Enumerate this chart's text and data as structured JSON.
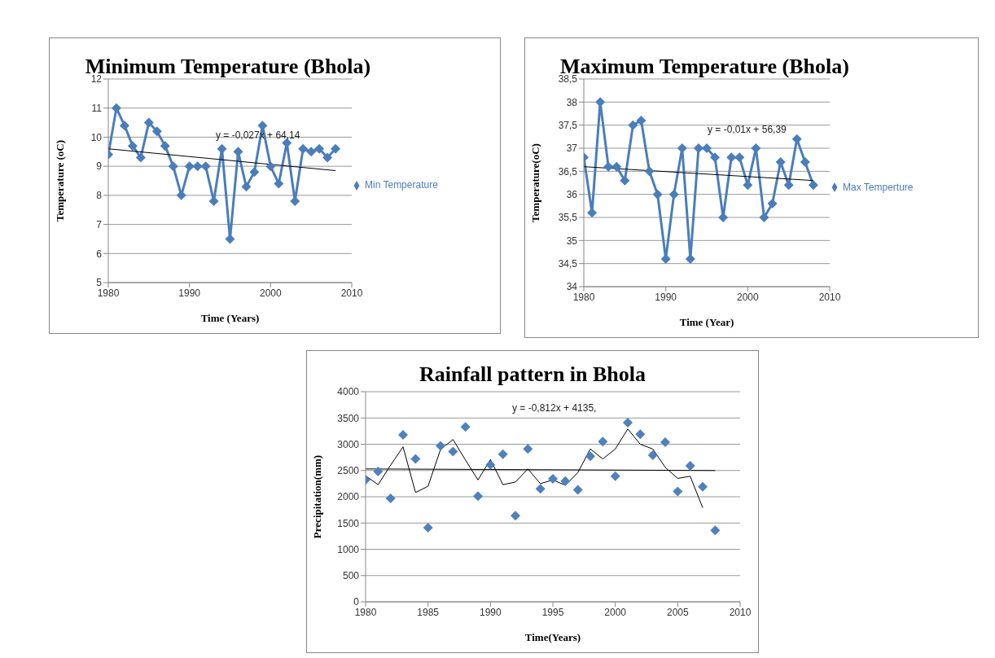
{
  "chart_data": [
    {
      "type": "line",
      "title": "Minimum Temperature (Bhola)",
      "xlabel": "Time (Years)",
      "ylabel": "Temperature (oC)",
      "xlim": [
        1980,
        2010
      ],
      "xticks": [
        1980,
        1990,
        2000,
        2010
      ],
      "ylim": [
        5,
        12
      ],
      "yticks": [
        5,
        6,
        7,
        8,
        9,
        10,
        11,
        12
      ],
      "grid": "y",
      "legend": "right",
      "marker": "diamond",
      "line_style": "solid",
      "series": [
        {
          "name": "Min Temperature",
          "color": "#4a7ebb",
          "x": [
            1980,
            1981,
            1982,
            1983,
            1984,
            1985,
            1986,
            1987,
            1988,
            1989,
            1990,
            1991,
            1992,
            1993,
            1994,
            1995,
            1996,
            1997,
            1998,
            1999,
            2000,
            2001,
            2002,
            2003,
            2004,
            2005,
            2006,
            2007,
            2008
          ],
          "values": [
            9.4,
            11,
            10.4,
            9.7,
            9.3,
            10.5,
            10.2,
            9.7,
            9,
            8,
            9,
            9,
            9,
            7.8,
            9.6,
            6.5,
            9.5,
            8.3,
            8.8,
            10.4,
            9,
            8.4,
            9.8,
            7.8,
            9.6,
            9.5,
            9.6,
            9.3,
            9.6
          ]
        },
        {
          "type": "line",
          "marker": "none",
          "color": "#000000",
          "x": [
            1980,
            2008
          ],
          "values": [
            9.6,
            8.85
          ]
        }
      ],
      "annotations": [
        "y = -0,027x + 64,14"
      ]
    },
    {
      "type": "line",
      "title": "Maximum Temperature (Bhola)",
      "xlabel": "Time (Year)",
      "ylabel": "Temperature(oC)",
      "xlim": [
        1980,
        2010
      ],
      "xticks": [
        1980,
        1990,
        2000,
        2010
      ],
      "ylim": [
        34,
        38.5
      ],
      "yticks": [
        {
          "value": 34,
          "label": "34"
        },
        {
          "value": 34.5,
          "label": "34,5"
        },
        {
          "value": 35,
          "label": "35"
        },
        {
          "value": 35.5,
          "label": "35,5"
        },
        {
          "value": 36,
          "label": "36"
        },
        {
          "value": 36.5,
          "label": "36,5"
        },
        {
          "value": 37,
          "label": "37"
        },
        {
          "value": 37.5,
          "label": "37,5"
        },
        {
          "value": 38,
          "label": "38"
        },
        {
          "value": 38.5,
          "label": "38,5"
        }
      ],
      "grid": "y",
      "legend": "right",
      "marker": "diamond",
      "line_style": "solid",
      "series": [
        {
          "name": "Max Temperture",
          "color": "#4a7ebb",
          "x": [
            1980,
            1981,
            1982,
            1983,
            1984,
            1985,
            1986,
            1987,
            1988,
            1989,
            1990,
            1991,
            1992,
            1993,
            1994,
            1995,
            1996,
            1997,
            1998,
            1999,
            2000,
            2001,
            2002,
            2003,
            2004,
            2005,
            2006,
            2007,
            2008
          ],
          "values": [
            36.8,
            35.6,
            38,
            36.6,
            36.6,
            36.3,
            37.5,
            37.6,
            36.5,
            36,
            34.6,
            36,
            37,
            34.6,
            37,
            37,
            36.8,
            35.5,
            36.8,
            36.8,
            36.2,
            37,
            35.5,
            35.8,
            36.7,
            36.2,
            37.2,
            36.7,
            36.2
          ]
        },
        {
          "type": "line",
          "marker": "none",
          "color": "#000000",
          "x": [
            1980,
            2008
          ],
          "values": [
            36.6,
            36.3
          ]
        }
      ],
      "annotations": [
        "y = -0,01x + 56,39"
      ]
    },
    {
      "type": "scatter",
      "title": "Rainfall pattern in Bhola",
      "xlabel": "Time(Years)",
      "ylabel": "Precipitation(mm)",
      "xlim": [
        1980,
        2010
      ],
      "xticks": [
        1980,
        1985,
        1990,
        1995,
        2000,
        2005,
        2010
      ],
      "ylim": [
        0,
        4000
      ],
      "yticks": [
        0,
        500,
        1000,
        1500,
        2000,
        2500,
        3000,
        3500,
        4000
      ],
      "grid": "y",
      "marker": "diamond",
      "line_style": "solid",
      "series": [
        {
          "color": "#4f81bd",
          "x": [
            1980,
            1981,
            1982,
            1983,
            1984,
            1985,
            1986,
            1987,
            1988,
            1989,
            1990,
            1991,
            1992,
            1993,
            1994,
            1995,
            1996,
            1997,
            1998,
            1999,
            2000,
            2001,
            2002,
            2003,
            2004,
            2005,
            2006,
            2007,
            2008
          ],
          "values": [
            2320,
            2480,
            1970,
            3180,
            2720,
            1410,
            2970,
            2860,
            3330,
            2010,
            2610,
            2810,
            1640,
            2910,
            2150,
            2340,
            2300,
            2130,
            2770,
            3050,
            2390,
            3410,
            3190,
            2790,
            3040,
            2100,
            2590,
            2190,
            1360
          ]
        },
        {
          "type": "line",
          "marker": "none",
          "color": "#000000",
          "x": [
            1980,
            1981,
            1982,
            1983,
            1984,
            1985,
            1986,
            1987,
            1988,
            1989,
            1990,
            1991,
            1992,
            1993,
            1994,
            1995,
            1996,
            1997,
            1998,
            1999,
            2000,
            2001,
            2002,
            2003,
            2004,
            2005,
            2006,
            2007
          ],
          "values": [
            2400,
            2230,
            2600,
            2950,
            2080,
            2200,
            2900,
            3090,
            2700,
            2320,
            2710,
            2230,
            2280,
            2530,
            2250,
            2320,
            2220,
            2460,
            2910,
            2720,
            2910,
            3290,
            3000,
            2910,
            2560,
            2350,
            2390,
            1790
          ]
        },
        {
          "type": "line",
          "marker": "none",
          "color": "#000000",
          "x": [
            1980,
            2008
          ],
          "values": [
            2530,
            2500
          ]
        }
      ],
      "annotations": [
        "y = -0,812x + 4135,"
      ]
    }
  ]
}
